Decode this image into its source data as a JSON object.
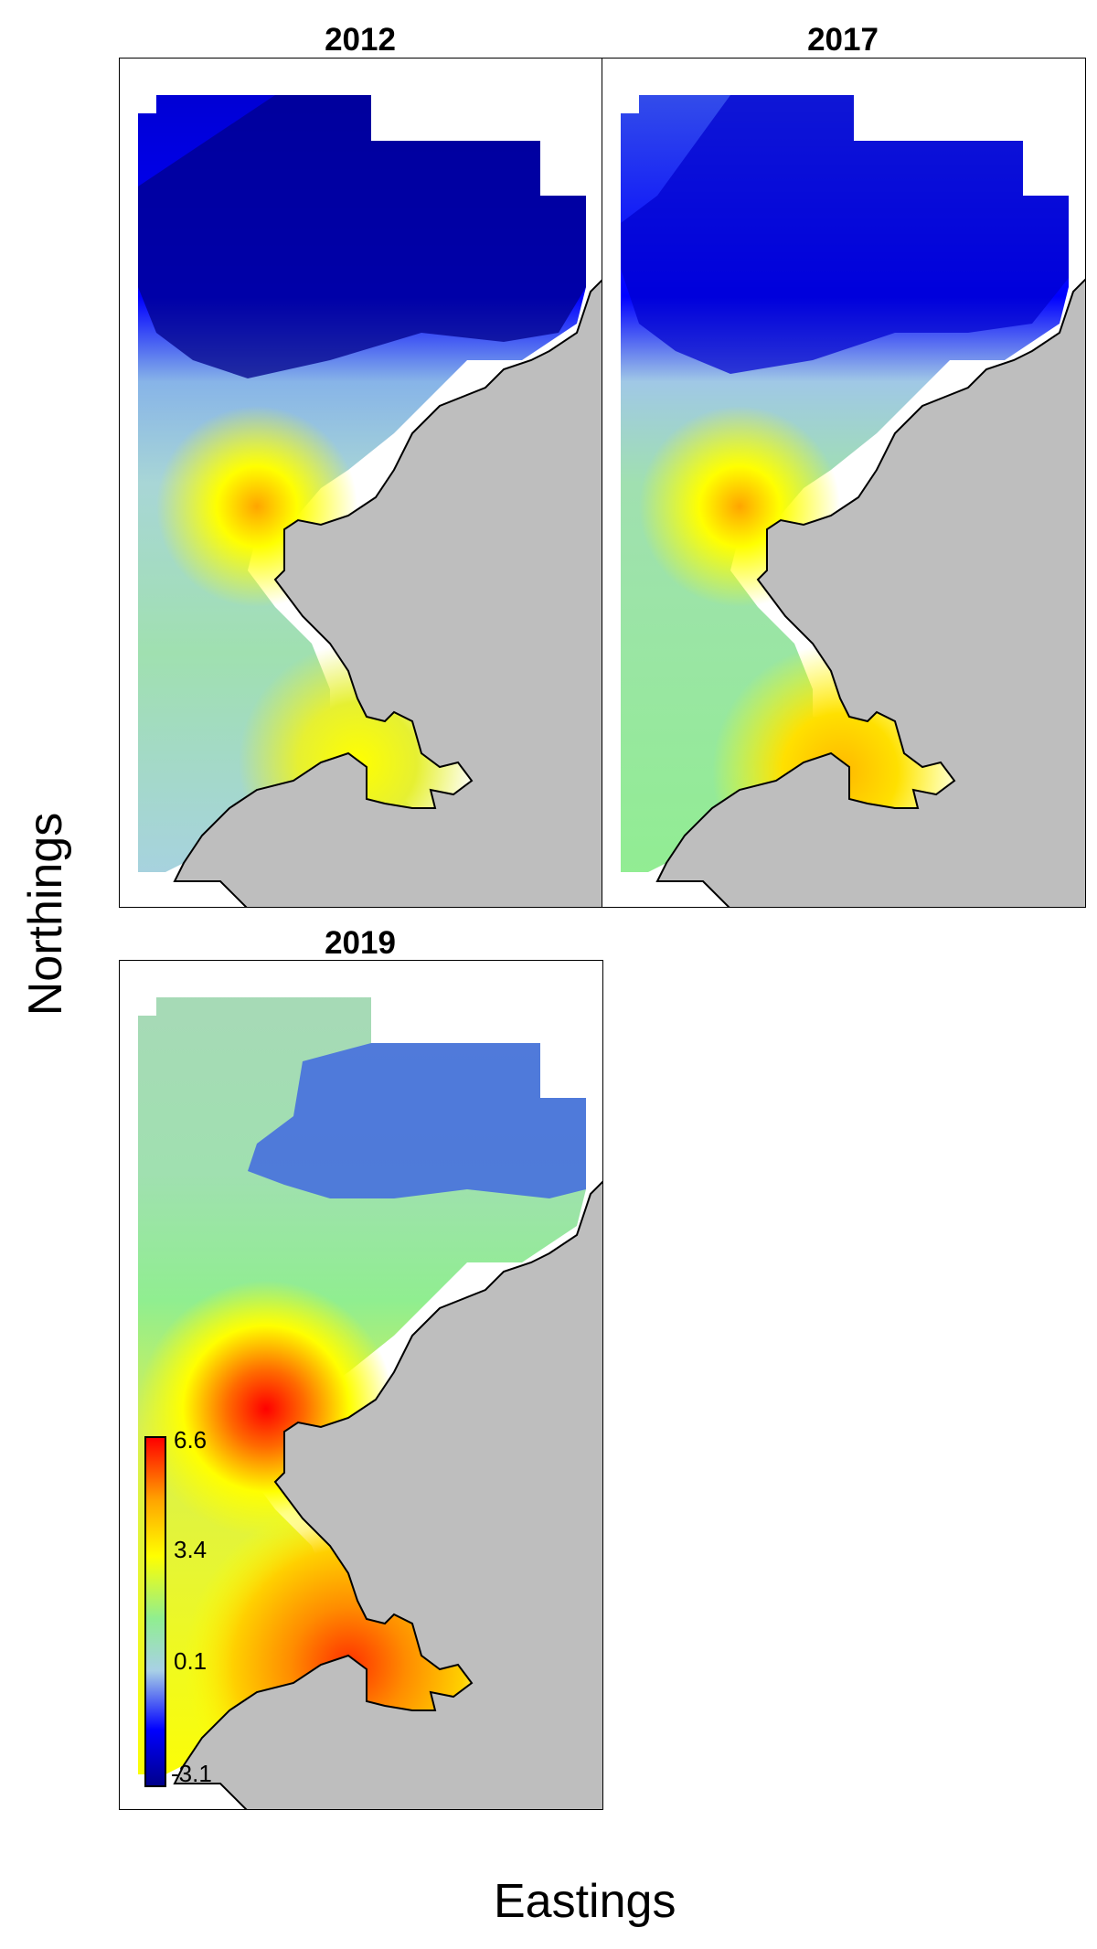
{
  "figure": {
    "y_axis_label": "Northings",
    "x_axis_label": "Eastings"
  },
  "panels": [
    {
      "title": "2012"
    },
    {
      "title": "2017"
    },
    {
      "title": "2019"
    }
  ],
  "legend": {
    "min_label": "-3.1",
    "low_label": "0.1",
    "mid_label": "3.4",
    "max_label": "6.6",
    "colors": [
      "#00008b",
      "#0000ff",
      "#a8d0e6",
      "#90ee90",
      "#ffff00",
      "#ffa500",
      "#ff0000"
    ]
  },
  "colors": {
    "land": "#bebebe",
    "coast": "#000000"
  }
}
